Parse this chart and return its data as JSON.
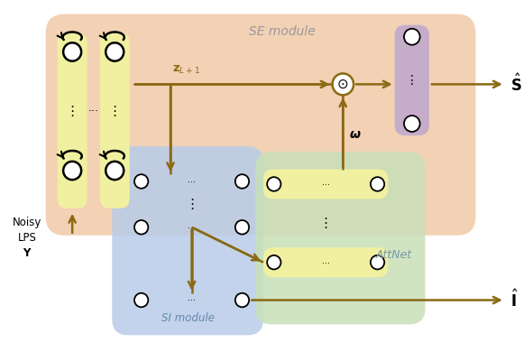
{
  "arrow_color": "#8B6914",
  "se_module_color": "#F2C9A8",
  "se_module_label": "SE module",
  "se_module_label_color": "#999999",
  "si_module_color": "#B8CCE8",
  "si_module_label": "SI module",
  "si_module_label_color": "#6688AA",
  "attnet_color": "#C8E0B8",
  "attnet_label": "AttNet",
  "attnet_label_color": "#7799AA",
  "rnn_box_color": "#F0F0A0",
  "purple_box_color": "#C0A8CC",
  "yellow_box_color": "#F0F0A0",
  "noisy_label": "Noisy\nLPS\n$\\mathbf{Y}$",
  "z_label": "$\\mathbf{z}_{L+1}$",
  "s_hat_label": "$\\hat{\\mathbf{S}}$",
  "i_hat_label": "$\\hat{\\mathbf{I}}$",
  "omega_label": "$\\boldsymbol{\\omega}$",
  "figsize": [
    5.9,
    3.9
  ],
  "dpi": 100
}
